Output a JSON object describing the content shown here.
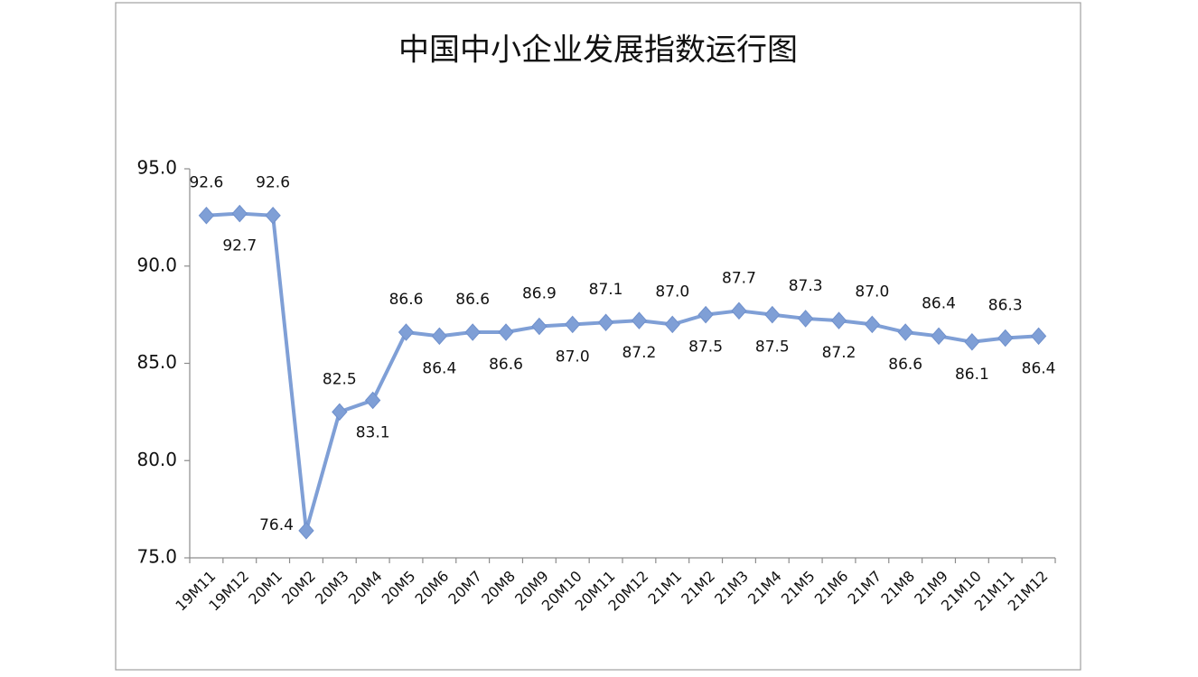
{
  "chart_data": {
    "type": "line",
    "title": "中国中小企业发展指数运行图",
    "categories": [
      "19M11",
      "19M12",
      "20M1",
      "20M2",
      "20M3",
      "20M4",
      "20M5",
      "20M6",
      "20M7",
      "20M8",
      "20M9",
      "20M10",
      "20M11",
      "20M12",
      "21M1",
      "21M2",
      "21M3",
      "21M4",
      "21M5",
      "21M6",
      "21M7",
      "21M8",
      "21M9",
      "21M10",
      "21M11",
      "21M12"
    ],
    "series": [
      {
        "color": "#7f9fd6",
        "values": [
          92.6,
          92.7,
          92.6,
          76.4,
          82.5,
          83.1,
          86.6,
          86.4,
          86.6,
          86.6,
          86.9,
          87.0,
          87.1,
          87.2,
          87.0,
          87.5,
          87.7,
          87.5,
          87.3,
          87.2,
          87.0,
          86.6,
          86.4,
          86.1,
          86.3,
          86.4
        ],
        "value_labels": [
          "92.6",
          "92.7",
          "92.6",
          "76.4",
          "82.5",
          "83.1",
          "86.6",
          "86.4",
          "86.6",
          "86.6",
          "86.9",
          "87.0",
          "87.1",
          "87.2",
          "87.0",
          "87.5",
          "87.7",
          "87.5",
          "87.3",
          "87.2",
          "87.0",
          "86.6",
          "86.4",
          "86.1",
          "86.3",
          "86.4"
        ]
      }
    ],
    "ylim": [
      75,
      95
    ],
    "yticks": [
      {
        "value": 75,
        "label": "75.0"
      },
      {
        "value": 80,
        "label": "80.0"
      },
      {
        "value": 85,
        "label": "85.0"
      },
      {
        "value": 90,
        "label": "90.0"
      },
      {
        "value": 95,
        "label": "95.0"
      }
    ],
    "grid": false
  }
}
